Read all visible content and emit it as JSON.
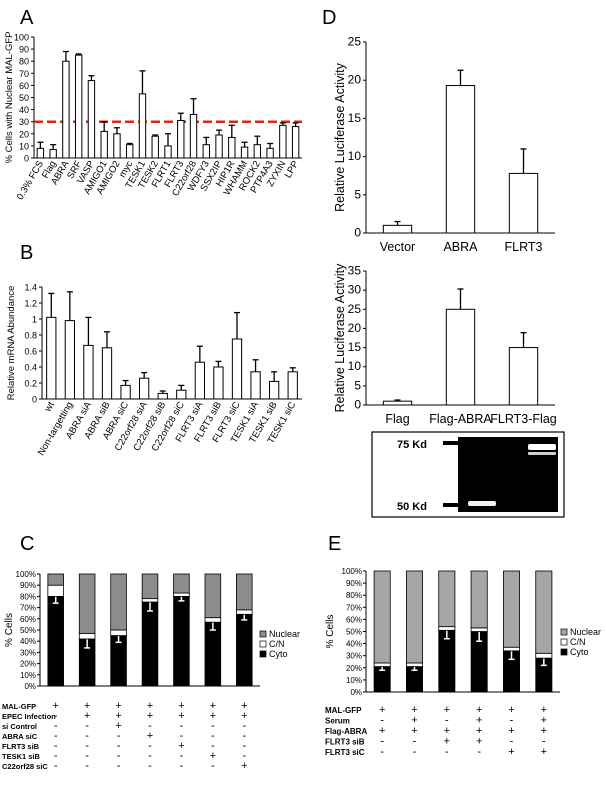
{
  "panel_labels": [
    "A",
    "B",
    "C",
    "D",
    "E"
  ],
  "chart_data": [
    {
      "panel": "A",
      "type": "bar",
      "ylabel": "% Cells with Nuclear MAL-GFP",
      "ylim": [
        0,
        100
      ],
      "yticks": [
        0,
        10,
        20,
        30,
        40,
        50,
        60,
        70,
        80,
        90,
        100
      ],
      "grid": false,
      "reference_line": {
        "y": 30,
        "color": "#e0241c",
        "style": "dashed"
      },
      "categories": [
        "0.3% FCS",
        "Flag",
        "ABRA",
        "SRF",
        "VASP",
        "AMIGO1",
        "AMIGO2",
        "myc",
        "TESK1",
        "TESK2",
        "FLRT1",
        "FLRT3",
        "C22orf28",
        "WDFY3",
        "SSX2IP",
        "HIP1R",
        "WHAMM",
        "ROCK2",
        "PTP4A3",
        "ZYXIN",
        "LPP"
      ],
      "values": [
        8,
        7,
        80,
        85,
        64,
        22,
        20,
        11,
        53,
        18,
        10,
        31,
        36,
        11,
        19,
        17,
        9,
        11,
        8,
        27,
        26
      ],
      "errors": [
        5,
        4,
        8,
        1,
        4,
        8,
        5,
        1,
        19,
        1,
        10,
        6,
        13,
        6,
        4,
        10,
        4,
        7,
        4,
        2,
        3
      ]
    },
    {
      "panel": "B",
      "type": "bar",
      "ylabel": "Relative mRNA Abundance",
      "ylim": [
        0,
        1.4
      ],
      "yticks": [
        "0",
        "0.2",
        "0.4",
        "0.6",
        "0.8",
        "1",
        "1.2",
        "1.4"
      ],
      "grid": false,
      "categories": [
        "wt",
        "Non-targetting",
        "ABRA siA",
        "ABRA siB",
        "ABRA siC",
        "C22orf28 siA",
        "C22orf28 siB",
        "C22orf28 siC",
        "FLRT3 siA",
        "FLRT3 siB",
        "FLRT3 siC",
        "TESK1 siA",
        "TESK1 siB",
        "TESK1 siC"
      ],
      "values": [
        1.02,
        0.98,
        0.67,
        0.64,
        0.17,
        0.26,
        0.07,
        0.11,
        0.46,
        0.4,
        0.75,
        0.34,
        0.22,
        0.34
      ],
      "errors": [
        0.3,
        0.36,
        0.35,
        0.2,
        0.06,
        0.07,
        0.03,
        0.06,
        0.2,
        0.07,
        0.33,
        0.15,
        0.12,
        0.05
      ]
    },
    {
      "panel": "C",
      "type": "bar",
      "stacked": true,
      "ylabel": "% Cells",
      "ylim": [
        0,
        100
      ],
      "yticks": [
        "0%",
        "10%",
        "20%",
        "30%",
        "40%",
        "50%",
        "60%",
        "70%",
        "80%",
        "90%",
        "100%"
      ],
      "legend_position": "right",
      "series": [
        {
          "name": "Cyto",
          "color": "#000000",
          "values": [
            80,
            42,
            45,
            75,
            80,
            57,
            64
          ],
          "errors": [
            6,
            8,
            6,
            8,
            4,
            7,
            5
          ]
        },
        {
          "name": "C/N",
          "color": "#ffffff",
          "values": [
            10,
            5,
            5,
            3,
            3,
            4,
            4
          ]
        },
        {
          "name": "Nuclear",
          "color": "#8c8c8c",
          "values": [
            10,
            53,
            50,
            22,
            17,
            39,
            32
          ]
        }
      ],
      "treatment_table": {
        "rows": [
          {
            "label": "MAL-GFP",
            "marks": [
              "+",
              "+",
              "+",
              "+",
              "+",
              "+",
              "+"
            ]
          },
          {
            "label": "EPEC Infection",
            "marks": [
              "-",
              "+",
              "+",
              "+",
              "+",
              "+",
              "+"
            ]
          },
          {
            "label": "si Control",
            "marks": [
              "-",
              "-",
              "+",
              "-",
              "-",
              "-",
              "-"
            ]
          },
          {
            "label": "ABRA siC",
            "marks": [
              "-",
              "-",
              "-",
              "+",
              "-",
              "-",
              "-"
            ]
          },
          {
            "label": "FLRT3 siB",
            "marks": [
              "-",
              "-",
              "-",
              "-",
              "+",
              "-",
              "-"
            ]
          },
          {
            "label": "TESK1 siB",
            "marks": [
              "-",
              "-",
              "-",
              "-",
              "-",
              "+",
              "-"
            ]
          },
          {
            "label": "C22orf28 siC",
            "marks": [
              "-",
              "-",
              "-",
              "-",
              "-",
              "-",
              "+"
            ]
          }
        ]
      }
    },
    {
      "panel": "D",
      "type": "bar",
      "ylabel": "Relative Luciferase Activity",
      "ylim": [
        0,
        25
      ],
      "yticks": [
        0,
        5,
        10,
        15,
        20,
        25
      ],
      "categories": [
        "Vector",
        "ABRA",
        "FLRT3"
      ],
      "values": [
        1,
        19.3,
        7.8
      ],
      "errors": [
        0.5,
        2,
        3.2
      ]
    },
    {
      "panel": "D",
      "type": "bar",
      "ylabel": "Relative Luciferase Activity",
      "ylim": [
        0,
        35
      ],
      "yticks": [
        0,
        5,
        10,
        15,
        20,
        25,
        30,
        35
      ],
      "categories": [
        "Flag",
        "Flag-ABRA",
        "FLRT3-Flag"
      ],
      "values": [
        1,
        25,
        15
      ],
      "errors": [
        0.3,
        5.3,
        3.9
      ],
      "blot": {
        "markers": [
          "75 Kd",
          "50 Kd"
        ]
      }
    },
    {
      "panel": "E",
      "type": "bar",
      "stacked": true,
      "ylabel": "% Cells",
      "ylim": [
        0,
        100
      ],
      "yticks": [
        "0%",
        "10%",
        "20%",
        "30%",
        "40%",
        "50%",
        "60%",
        "70%",
        "80%",
        "90%",
        "100%"
      ],
      "legend_position": "right",
      "series": [
        {
          "name": "Cyto",
          "color": "#000000",
          "values": [
            21,
            21,
            51,
            50,
            34,
            28
          ],
          "errors": [
            3,
            3,
            7,
            8,
            7,
            6
          ]
        },
        {
          "name": "C/N",
          "color": "#ffffff",
          "values": [
            3,
            3,
            3,
            3,
            3,
            4
          ]
        },
        {
          "name": "Nuclear",
          "color": "#a6a6a6",
          "values": [
            76,
            76,
            46,
            47,
            63,
            68
          ]
        }
      ],
      "treatment_table": {
        "rows": [
          {
            "label": "MAL-GFP",
            "marks": [
              "+",
              "+",
              "+",
              "+",
              "+",
              "+"
            ]
          },
          {
            "label": "Serum",
            "marks": [
              "-",
              "+",
              "-",
              "+",
              "-",
              "+"
            ]
          },
          {
            "label": "Flag-ABRA",
            "marks": [
              "+",
              "+",
              "+",
              "+",
              "+",
              "+"
            ]
          },
          {
            "label": "FLRT3 siB",
            "marks": [
              "-",
              "-",
              "+",
              "+",
              "-",
              "-"
            ]
          },
          {
            "label": "FLRT3 siC",
            "marks": [
              "-",
              "-",
              "-",
              "-",
              "+",
              "+"
            ]
          }
        ]
      }
    }
  ]
}
